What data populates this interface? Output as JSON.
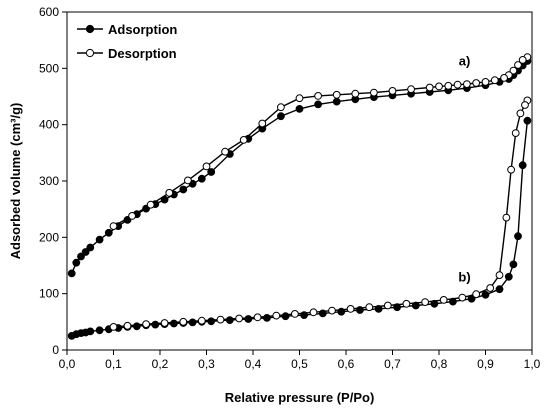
{
  "chart_data": {
    "type": "line",
    "xlabel": "Relative pressure (P/Po)",
    "ylabel": "Adsorbed volume (cm³/g)",
    "xlim": [
      0,
      1.0
    ],
    "ylim": [
      0,
      600
    ],
    "xticks": [
      "0,0",
      "0,1",
      "0,2",
      "0,3",
      "0,4",
      "0,5",
      "0,6",
      "0,7",
      "0,8",
      "0,9",
      "1,0"
    ],
    "yticks": [
      "0",
      "100",
      "200",
      "300",
      "400",
      "500",
      "600"
    ],
    "grid": false,
    "legend_position": "top-left",
    "legend": [
      {
        "label": "Adsorption",
        "marker": "filled-circle"
      },
      {
        "label": "Desorption",
        "marker": "open-circle"
      }
    ],
    "annotations": [
      {
        "text": "a)",
        "x": 0.855,
        "y": 505
      },
      {
        "text": "b)",
        "x": 0.855,
        "y": 122
      }
    ],
    "series": [
      {
        "curve": "a",
        "kind": "adsorption",
        "marker": "filled",
        "x": [
          0.01,
          0.02,
          0.03,
          0.04,
          0.05,
          0.07,
          0.09,
          0.11,
          0.13,
          0.15,
          0.17,
          0.19,
          0.21,
          0.23,
          0.25,
          0.27,
          0.29,
          0.31,
          0.35,
          0.39,
          0.42,
          0.46,
          0.5,
          0.54,
          0.58,
          0.62,
          0.66,
          0.7,
          0.74,
          0.78,
          0.82,
          0.86,
          0.9,
          0.93,
          0.95,
          0.96,
          0.97,
          0.98,
          0.99
        ],
        "y": [
          136,
          155,
          166,
          174,
          182,
          196,
          208,
          220,
          231,
          241,
          251,
          259,
          267,
          276,
          285,
          295,
          304,
          316,
          348,
          375,
          393,
          415,
          428,
          436,
          441,
          445,
          449,
          452,
          455,
          458,
          461,
          465,
          470,
          476,
          481,
          488,
          496,
          505,
          513
        ]
      },
      {
        "curve": "a",
        "kind": "desorption",
        "marker": "open",
        "x": [
          0.99,
          0.98,
          0.97,
          0.96,
          0.95,
          0.94,
          0.92,
          0.9,
          0.88,
          0.86,
          0.84,
          0.82,
          0.8,
          0.78,
          0.74,
          0.7,
          0.66,
          0.62,
          0.58,
          0.54,
          0.5,
          0.46,
          0.42,
          0.38,
          0.34,
          0.3,
          0.26,
          0.22,
          0.18,
          0.14,
          0.1
        ],
        "y": [
          520,
          515,
          506,
          496,
          488,
          483,
          479,
          476,
          474,
          472,
          471,
          469,
          468,
          466,
          463,
          460,
          457,
          455,
          453,
          451,
          447,
          431,
          402,
          373,
          352,
          326,
          301,
          279,
          258,
          238,
          220
        ]
      },
      {
        "curve": "b",
        "kind": "adsorption",
        "marker": "filled",
        "x": [
          0.01,
          0.02,
          0.03,
          0.04,
          0.05,
          0.07,
          0.09,
          0.11,
          0.13,
          0.15,
          0.17,
          0.19,
          0.21,
          0.23,
          0.25,
          0.27,
          0.29,
          0.31,
          0.35,
          0.39,
          0.43,
          0.47,
          0.51,
          0.55,
          0.59,
          0.63,
          0.67,
          0.71,
          0.75,
          0.79,
          0.83,
          0.87,
          0.9,
          0.93,
          0.95,
          0.96,
          0.97,
          0.98,
          0.99
        ],
        "y": [
          25,
          28,
          30,
          31,
          33,
          35,
          37,
          39,
          41,
          42,
          44,
          45,
          46,
          47,
          48,
          49,
          50,
          51,
          53,
          55,
          57,
          60,
          62,
          65,
          68,
          71,
          73,
          76,
          79,
          82,
          86,
          91,
          98,
          108,
          130,
          152,
          202,
          328,
          407
        ]
      },
      {
        "curve": "b",
        "kind": "desorption",
        "marker": "open",
        "x": [
          0.99,
          0.985,
          0.975,
          0.965,
          0.955,
          0.945,
          0.93,
          0.91,
          0.88,
          0.85,
          0.81,
          0.77,
          0.73,
          0.69,
          0.65,
          0.61,
          0.57,
          0.53,
          0.49,
          0.45,
          0.41,
          0.37,
          0.33,
          0.29,
          0.25,
          0.21,
          0.17,
          0.13,
          0.1
        ],
        "y": [
          443,
          435,
          420,
          385,
          320,
          235,
          133,
          110,
          99,
          93,
          89,
          85,
          82,
          79,
          76,
          73,
          70,
          67,
          64,
          61,
          58,
          56,
          54,
          52,
          50,
          48,
          46,
          43,
          41
        ]
      }
    ]
  }
}
